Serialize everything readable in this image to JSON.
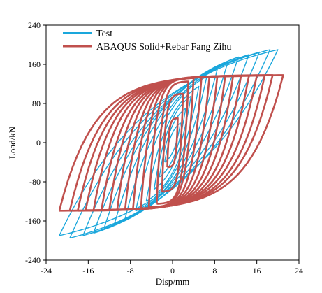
{
  "chart_data": {
    "type": "line",
    "xlabel": "Disp/mm",
    "ylabel": "Load/kN",
    "xlim": [
      -24,
      24
    ],
    "ylim": [
      -240,
      240
    ],
    "xticks": [
      "-24",
      "-16",
      "-8",
      "0",
      "8",
      "16",
      "24"
    ],
    "yticks": [
      "240",
      "160",
      "80",
      "0",
      "-80",
      "-160",
      "-240"
    ],
    "grid": false,
    "legend_position": "top-left",
    "series": [
      {
        "name": "Test",
        "color": "#1aa7dc",
        "cycles": [
          {
            "xmax": 1.5,
            "ymax": 40,
            "xmin": -1.5,
            "ymin": -40
          },
          {
            "xmax": 2.5,
            "ymax": 70,
            "xmin": -2.5,
            "ymin": -70
          },
          {
            "xmax": 3.5,
            "ymax": 95,
            "xmin": -3.5,
            "ymin": -95
          },
          {
            "xmax": 5,
            "ymax": 115,
            "xmin": -5,
            "ymin": -120
          },
          {
            "xmax": 6.5,
            "ymax": 135,
            "xmin": -7,
            "ymin": -140
          },
          {
            "xmax": 8.5,
            "ymax": 150,
            "xmin": -9,
            "ymin": -155
          },
          {
            "xmax": 10.5,
            "ymax": 165,
            "xmin": -11,
            "ymin": -165
          },
          {
            "xmax": 12.5,
            "ymax": 175,
            "xmin": -13,
            "ymin": -175
          },
          {
            "xmax": 14.5,
            "ymax": 180,
            "xmin": -15,
            "ymin": -185
          },
          {
            "xmax": 16.5,
            "ymax": 185,
            "xmin": -17,
            "ymin": -190
          },
          {
            "xmax": 18.5,
            "ymax": 190,
            "xmin": -19.5,
            "ymin": -195
          },
          {
            "xmax": 20,
            "ymax": 190,
            "xmin": -21.5,
            "ymin": -190
          }
        ]
      },
      {
        "name": "ABAQUS Solid+Rebar Fang Zihu",
        "color": "#c0504d",
        "cycles": [
          {
            "xmax": 1,
            "ymax": 50,
            "xmin": -1,
            "ymin": -50
          },
          {
            "xmax": 2,
            "ymax": 100,
            "xmin": -2,
            "ymin": -100
          },
          {
            "xmax": 3,
            "ymax": 125,
            "xmin": -3,
            "ymin": -125
          },
          {
            "xmax": 4,
            "ymax": 132,
            "xmin": -4.5,
            "ymin": -132
          },
          {
            "xmax": 5.5,
            "ymax": 134,
            "xmin": -6,
            "ymin": -134
          },
          {
            "xmax": 7,
            "ymax": 135,
            "xmin": -7.5,
            "ymin": -135
          },
          {
            "xmax": 8.5,
            "ymax": 135,
            "xmin": -9,
            "ymin": -136
          },
          {
            "xmax": 10,
            "ymax": 136,
            "xmin": -10.5,
            "ymin": -137
          },
          {
            "xmax": 11.5,
            "ymax": 136,
            "xmin": -12,
            "ymin": -137
          },
          {
            "xmax": 13,
            "ymax": 136,
            "xmin": -13.5,
            "ymin": -138
          },
          {
            "xmax": 14.5,
            "ymax": 137,
            "xmin": -15,
            "ymin": -138
          },
          {
            "xmax": 16,
            "ymax": 137,
            "xmin": -16.5,
            "ymin": -138
          },
          {
            "xmax": 17.5,
            "ymax": 137,
            "xmin": -18,
            "ymin": -139
          },
          {
            "xmax": 19,
            "ymax": 138,
            "xmin": -19.5,
            "ymin": -139
          },
          {
            "xmax": 21,
            "ymax": 138,
            "xmin": -21.5,
            "ymin": -139
          }
        ]
      }
    ]
  }
}
